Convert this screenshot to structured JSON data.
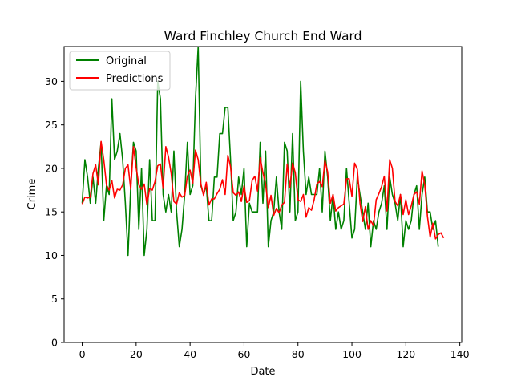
{
  "chart_data": {
    "type": "line",
    "title": "Ward Finchley Church End Ward",
    "xlabel": "Date",
    "ylabel": "Crime",
    "xlim": [
      -6.7,
      140.7
    ],
    "ylim": [
      0,
      34
    ],
    "xticks": [
      0,
      20,
      40,
      60,
      80,
      100,
      120,
      140
    ],
    "yticks": [
      0,
      5,
      10,
      15,
      20,
      25,
      30
    ],
    "grid": false,
    "legend_position": "top-left",
    "series": [
      {
        "name": "Original",
        "color": "#008000",
        "values": [
          16,
          21,
          19,
          16,
          19,
          16,
          20,
          23,
          14,
          18,
          17,
          28,
          21,
          22,
          24,
          21,
          16,
          10,
          18,
          23,
          22,
          13,
          20,
          10,
          13,
          21,
          14,
          14,
          30,
          28,
          17,
          15,
          17,
          15,
          22,
          15,
          11,
          13,
          17,
          23,
          17,
          18,
          28,
          34,
          18,
          17,
          18,
          14,
          14,
          19,
          19,
          24,
          24,
          27,
          27,
          21,
          14,
          15,
          19,
          17,
          20,
          11,
          16,
          15,
          15,
          15,
          23,
          16,
          22,
          11,
          14,
          15,
          19,
          15,
          13,
          23,
          22,
          15,
          24,
          14,
          15,
          30,
          22,
          17,
          19,
          17,
          17,
          17,
          20,
          15,
          22,
          19,
          14,
          17,
          13,
          15,
          13,
          14,
          20,
          16,
          12,
          13,
          19,
          17,
          15,
          13,
          16,
          11,
          14,
          13,
          15,
          16,
          18,
          13,
          19,
          17,
          16,
          14,
          17,
          11,
          14,
          13,
          14,
          17,
          18,
          13,
          17,
          19,
          15,
          15,
          13,
          14,
          11
        ]
      },
      {
        "name": "Predictions",
        "color": "#ff0000",
        "values": [
          15.9,
          16.7,
          16.6,
          16.7,
          19.4,
          20.4,
          18.1,
          23.1,
          21.0,
          18.1,
          17.5,
          18.6,
          16.6,
          17.6,
          17.5,
          18.1,
          20.0,
          20.4,
          17.6,
          22.5,
          20.1,
          18.1,
          17.6,
          18.2,
          15.8,
          17.7,
          17.5,
          18.5,
          20.3,
          20.5,
          17.7,
          22.5,
          21.3,
          19.4,
          16.2,
          15.9,
          17.2,
          16.7,
          16.9,
          19.1,
          19.8,
          18.3,
          22.1,
          21.0,
          18.2,
          16.9,
          18.4,
          15.8,
          16.5,
          16.5,
          17.1,
          17.6,
          18.7,
          17.0,
          21.5,
          20.2,
          17.2,
          16.9,
          17.3,
          16.2,
          18.0,
          16.1,
          16.3,
          18.6,
          19.1,
          17.4,
          21.2,
          19.5,
          18.2,
          15.5,
          16.9,
          14.6,
          15.4,
          14.9,
          15.8,
          16.1,
          20.5,
          17.8,
          20.6,
          19.5,
          16.4,
          16.2,
          17.0,
          14.4,
          15.5,
          15.2,
          16.4,
          18.2,
          18.5,
          17.9,
          20.9,
          19.6,
          16.0,
          17.0,
          15.1,
          15.5,
          15.7,
          15.9,
          18.8,
          18.8,
          16.8,
          20.6,
          19.9,
          16.0,
          13.9,
          15.6,
          13.0,
          14.0,
          13.4,
          16.4,
          17.1,
          17.9,
          19.1,
          15.1,
          21.0,
          20.0,
          16.2,
          15.7,
          17.0,
          14.7,
          16.4,
          14.7,
          15.7,
          17.0,
          17.3,
          15.9,
          19.7,
          18.1,
          14.5,
          12.1,
          13.7,
          11.9,
          12.4,
          12.6,
          12.0
        ]
      }
    ]
  }
}
